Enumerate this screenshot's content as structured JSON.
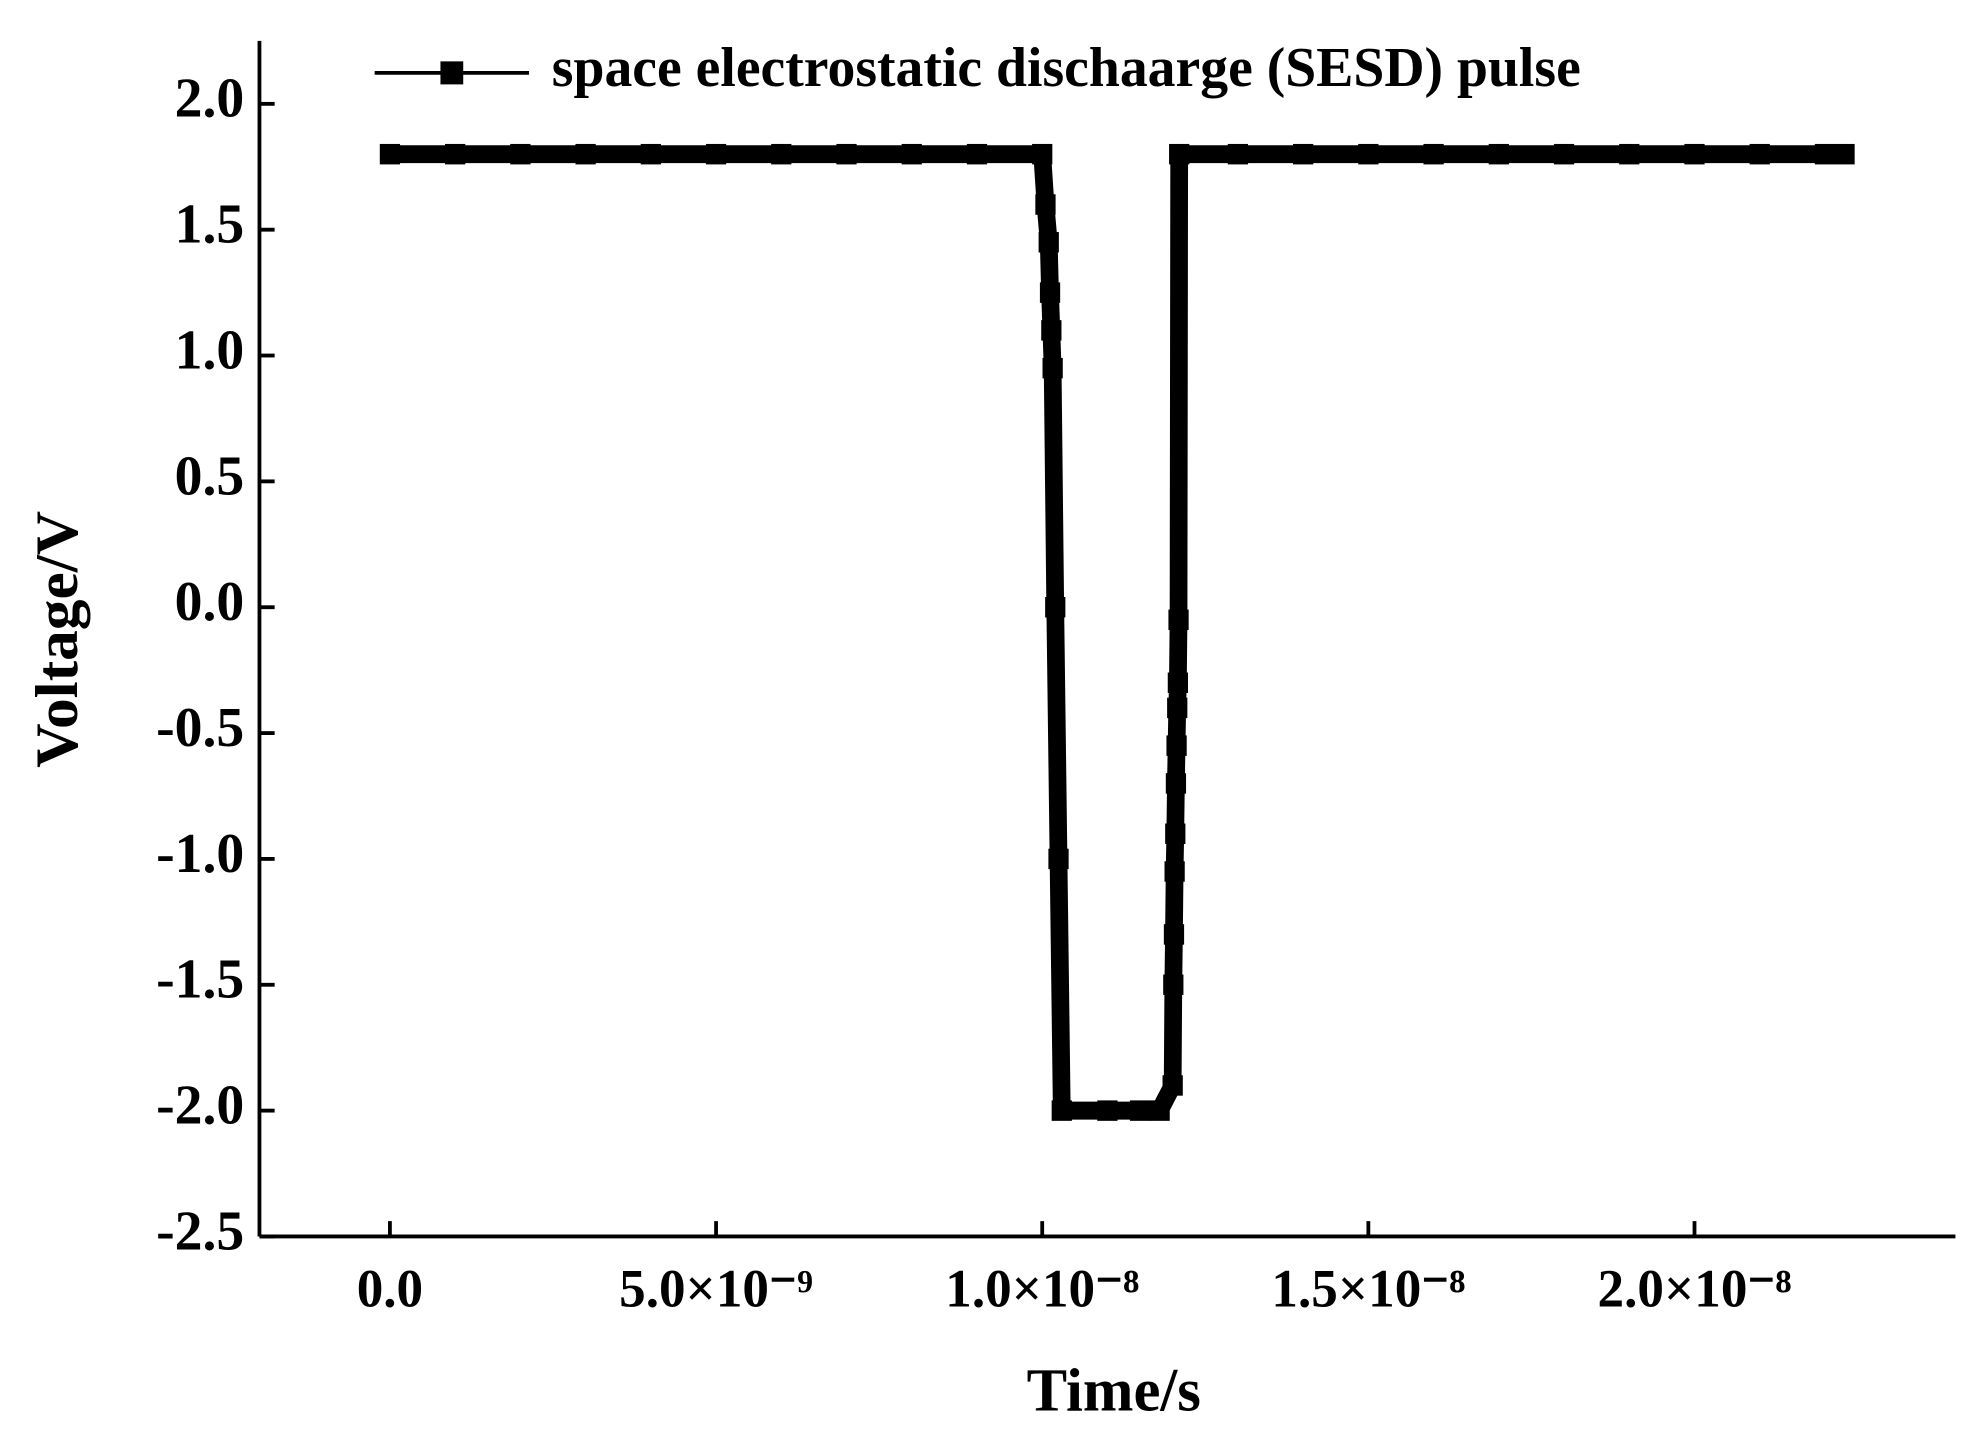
{
  "chart_data": {
    "type": "line",
    "x_label": "Time/s",
    "y_label": "Voltage/V",
    "x": [
      0,
      1e-09,
      2e-09,
      3e-09,
      4e-09,
      5e-09,
      6e-09,
      7e-09,
      8e-09,
      9e-09,
      1e-08,
      1.005e-08,
      1.01e-08,
      1.012e-08,
      1.014e-08,
      1.016e-08,
      1.02e-08,
      1.025e-08,
      1.03e-08,
      1.1e-08,
      1.15e-08,
      1.18e-08,
      1.2e-08,
      1.201e-08,
      1.202e-08,
      1.203e-08,
      1.204e-08,
      1.205e-08,
      1.206e-08,
      1.207e-08,
      1.208e-08,
      1.209e-08,
      1.21e-08,
      1.3e-08,
      1.4e-08,
      1.5e-08,
      1.6e-08,
      1.7e-08,
      1.8e-08,
      1.9e-08,
      2e-08,
      2.1e-08,
      2.2e-08,
      2.23e-08
    ],
    "series": [
      {
        "name": "space electrostatic dischaarge (SESD) pulse",
        "color": "#000000",
        "values": [
          1.8,
          1.8,
          1.8,
          1.8,
          1.8,
          1.8,
          1.8,
          1.8,
          1.8,
          1.8,
          1.8,
          1.6,
          1.45,
          1.25,
          1.1,
          0.95,
          0.0,
          -1.0,
          -2.0,
          -2.0,
          -2.0,
          -2.0,
          -1.9,
          -1.5,
          -1.3,
          -1.05,
          -0.9,
          -0.7,
          -0.55,
          -0.4,
          -0.3,
          -0.05,
          1.8,
          1.8,
          1.8,
          1.8,
          1.8,
          1.8,
          1.8,
          1.8,
          1.8,
          1.8,
          1.8,
          1.8
        ]
      }
    ],
    "xlim": [
      -2e-09,
      2.4e-08
    ],
    "xticks": [
      {
        "value": 0,
        "label": "0.0"
      },
      {
        "value": 5e-09,
        "label": "5.0×10⁻⁹"
      },
      {
        "value": 1e-08,
        "label": "1.0×10⁻⁸"
      },
      {
        "value": 1.5e-08,
        "label": "1.5×10⁻⁸"
      },
      {
        "value": 2e-08,
        "label": "2.0×10⁻⁸"
      }
    ],
    "ylim": [
      -2.5,
      2.25
    ],
    "yticks": [
      {
        "value": -2.5,
        "label": "-2.5"
      },
      {
        "value": -2,
        "label": "-2.0"
      },
      -1.5,
      {
        "value": -1,
        "label": "-1.0"
      },
      -0.5,
      {
        "value": 0,
        "label": "0.0"
      },
      0.5,
      {
        "value": 1,
        "label": "1.0"
      },
      1.5,
      {
        "value": 2,
        "label": "2.0"
      }
    ],
    "legend": "top"
  }
}
